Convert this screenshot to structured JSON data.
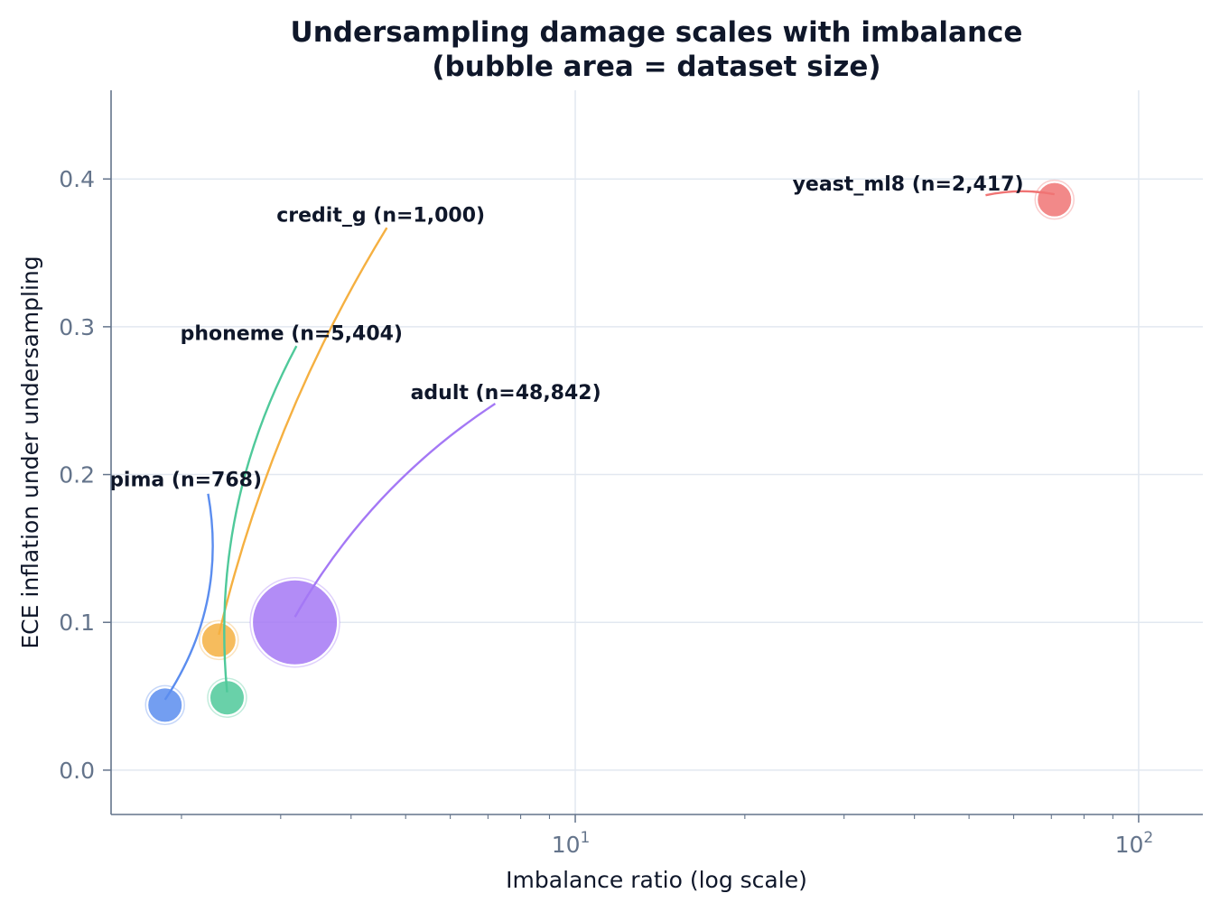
{
  "chart_data": {
    "type": "scatter",
    "title": "Undersampling damage scales with imbalance",
    "subtitle": "(bubble area = dataset size)",
    "xlabel": "Imbalance ratio (log scale)",
    "ylabel": "ECE inflation under undersampling",
    "xscale": "log",
    "xlim": [
      1.5,
      130
    ],
    "ylim": [
      -0.03,
      0.46
    ],
    "grid": true,
    "xticks": [
      {
        "value": 10,
        "label": "10",
        "exp": "1"
      },
      {
        "value": 100,
        "label": "10",
        "exp": "2"
      }
    ],
    "yticks": [
      {
        "value": 0.0,
        "label": "0.0"
      },
      {
        "value": 0.1,
        "label": "0.1"
      },
      {
        "value": 0.2,
        "label": "0.2"
      },
      {
        "value": 0.3,
        "label": "0.3"
      },
      {
        "value": 0.4,
        "label": "0.4"
      }
    ],
    "points": [
      {
        "name": "pima",
        "label": "pima  (n=768)",
        "n": 768,
        "x": 1.87,
        "y": 0.044,
        "color": "#5b8def",
        "label_x": 1.49,
        "label_y": 0.197,
        "line_x": 2.23,
        "line_y": 0.187,
        "line_curve": 0.2
      },
      {
        "name": "credit_g",
        "label": "credit_g  (n=1,000)",
        "n": 1000,
        "x": 2.33,
        "y": 0.088,
        "color": "#f5b041",
        "label_x": 2.95,
        "label_y": 0.376,
        "line_x": 4.63,
        "line_y": 0.367,
        "line_curve": -0.08
      },
      {
        "name": "phoneme",
        "label": "phoneme  (n=5,404)",
        "n": 5404,
        "x": 2.41,
        "y": 0.049,
        "color": "#4fc99a",
        "label_x": 1.99,
        "label_y": 0.296,
        "line_x": 3.2,
        "line_y": 0.287,
        "line_curve": -0.15
      },
      {
        "name": "adult",
        "label": "adult  (n=48,842)",
        "n": 48842,
        "x": 3.18,
        "y": 0.1,
        "color": "#a478f5",
        "label_x": 5.1,
        "label_y": 0.256,
        "line_x": 7.21,
        "line_y": 0.248,
        "line_curve": -0.12
      },
      {
        "name": "yeast_ml8",
        "label": "yeast_ml8  (n=2,417)",
        "n": 2417,
        "x": 70.9,
        "y": 0.386,
        "color": "#f07474",
        "label_x": 24.3,
        "label_y": 0.397,
        "line_x": 53.5,
        "line_y": 0.389,
        "line_curve": 0.1
      }
    ]
  }
}
